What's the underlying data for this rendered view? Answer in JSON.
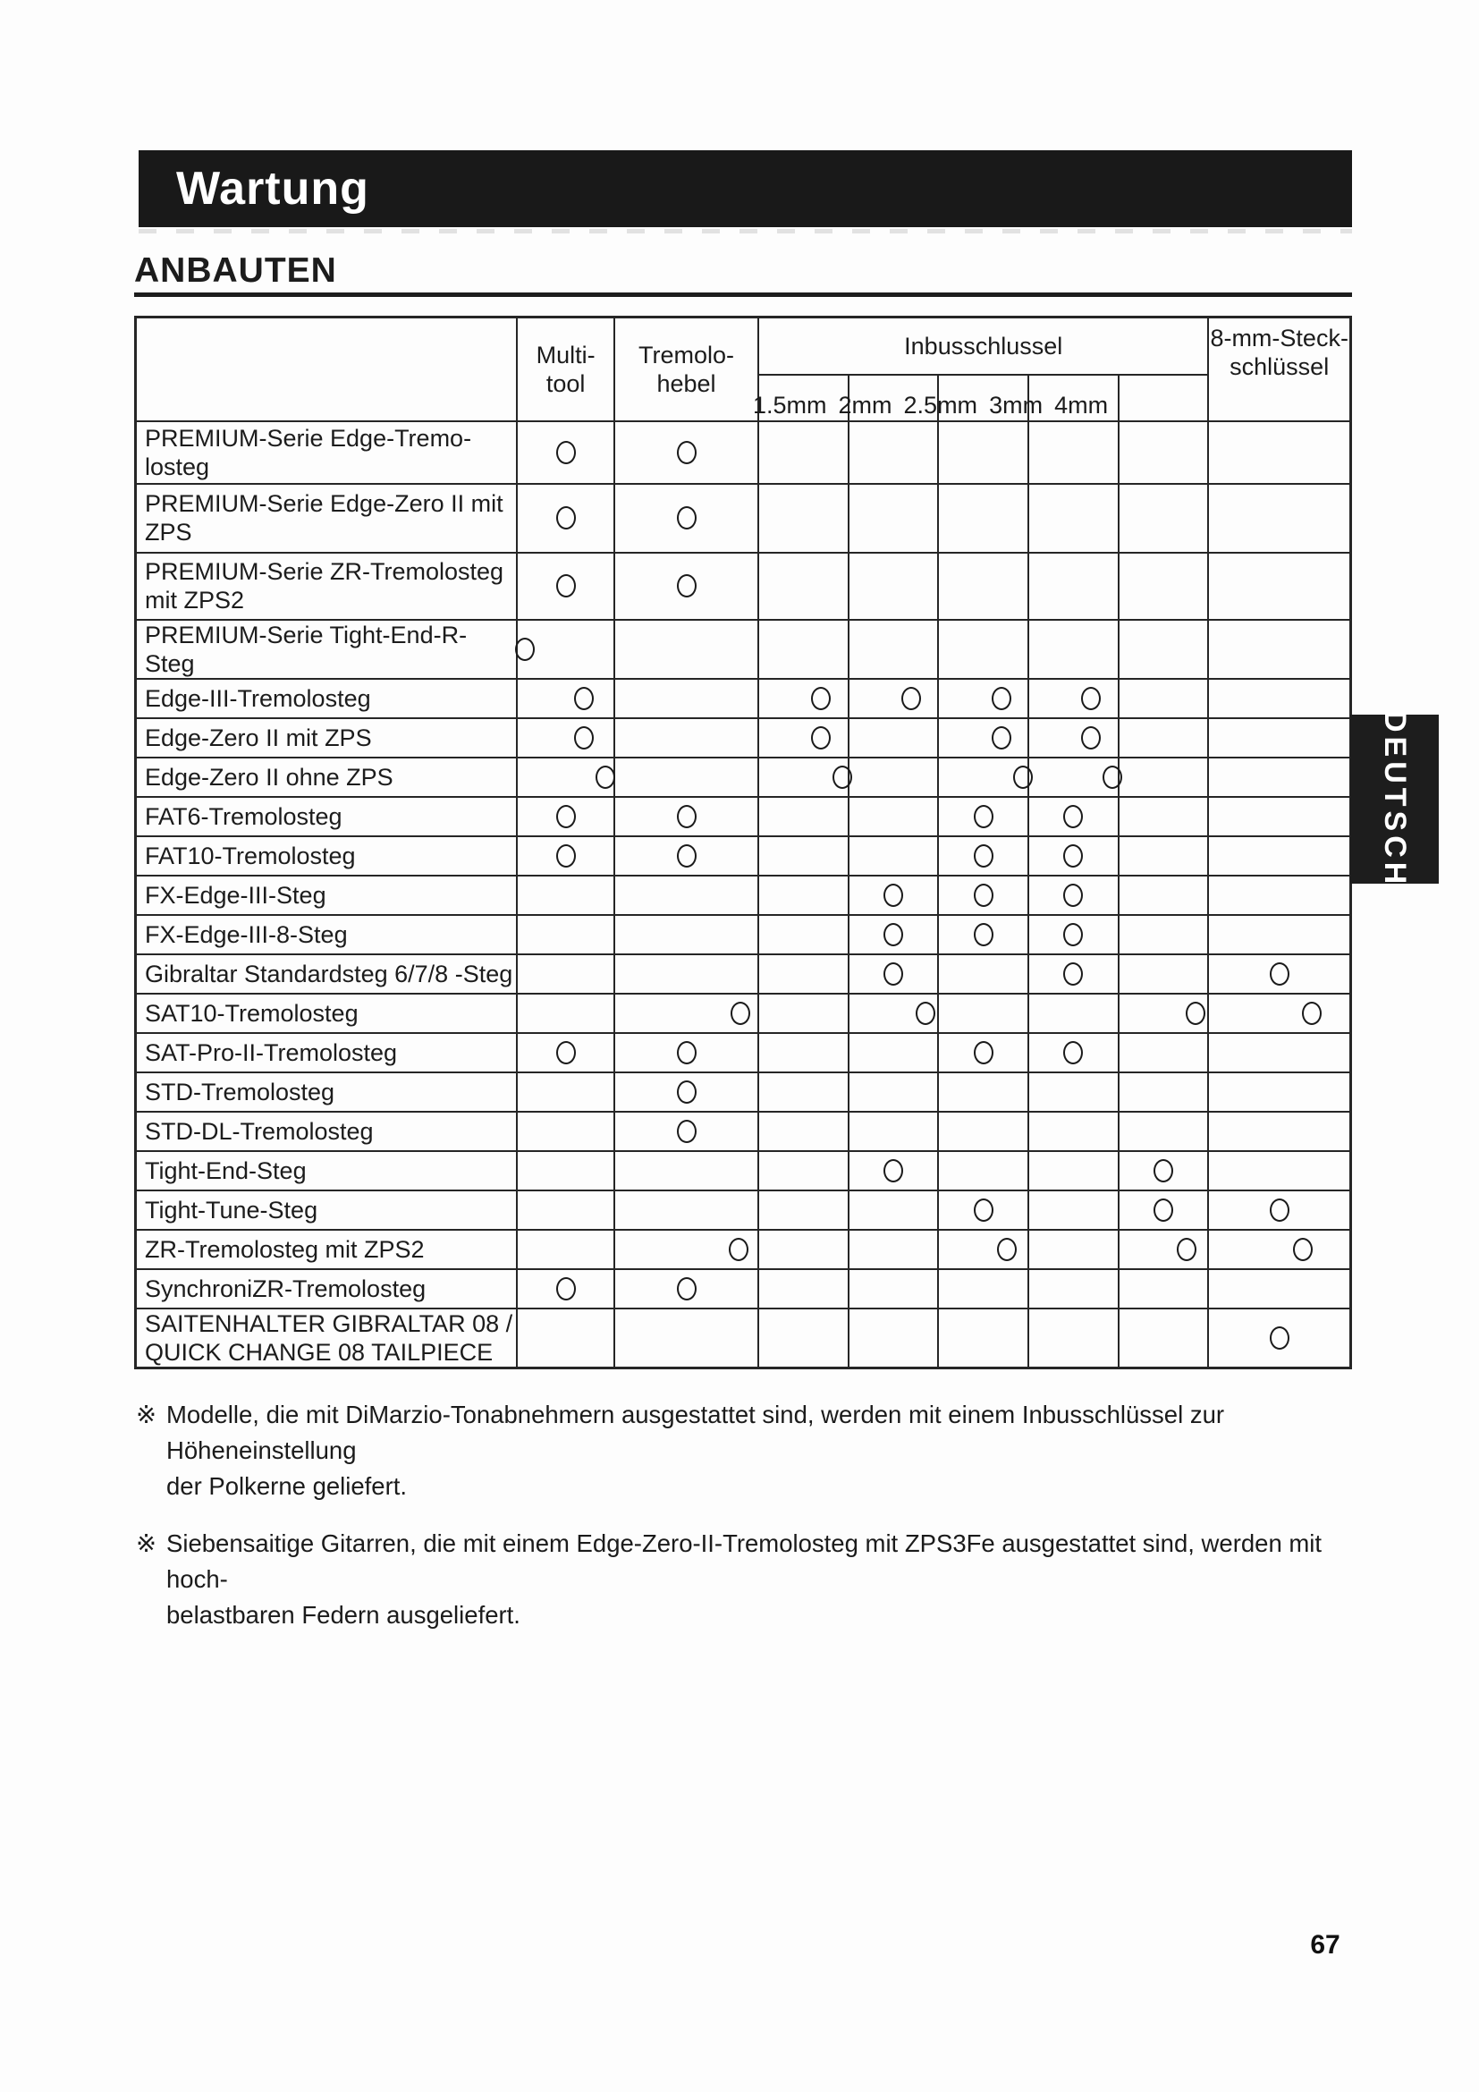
{
  "header": {
    "title": "Wartung",
    "section": "ANBAUTEN"
  },
  "table": {
    "col_headers": {
      "multi_tool_line1": "Multi-",
      "multi_tool_line2": "tool",
      "tremolo_arm_line1": "Tremolo-",
      "tremolo_arm_line2": "hebel",
      "allen_wrench_group": "Inbusschlussel",
      "allen_sizes": [
        "1.5mm",
        "2mm",
        "2.5mm",
        "3mm",
        "4mm"
      ],
      "socket_wrench_line1": "8-mm-Steck-",
      "socket_wrench_line2": "schlüssel"
    },
    "columns_order": [
      "multi_tool",
      "tremolo_arm",
      "allen_1_5mm",
      "allen_2mm",
      "allen_2_5mm",
      "allen_3mm",
      "allen_4mm",
      "socket_8mm"
    ],
    "circle_mark_meaning": "tool supplied with this bridge",
    "rows": [
      {
        "label": "PREMIUM-Serie Edge-Tremo-\nlosteg",
        "cells": [
          1,
          1,
          0,
          0,
          0,
          0,
          0,
          0
        ]
      },
      {
        "label": "PREMIUM-Serie Edge-Zero II mit\nZPS",
        "cells": [
          1,
          1,
          0,
          0,
          0,
          0,
          0,
          0
        ]
      },
      {
        "label": "PREMIUM-Serie ZR-Tremolosteg\nmit ZPS2",
        "cells": [
          1,
          1,
          0,
          0,
          0,
          0,
          0,
          0
        ]
      },
      {
        "label": "PREMIUM-Serie Tight-End-R-Steg",
        "cells": [
          1,
          0,
          0,
          0,
          0,
          0,
          0,
          0
        ]
      },
      {
        "label": "Edge-III-Tremolosteg",
        "cells": [
          1,
          0,
          1,
          1,
          1,
          1,
          0,
          0
        ]
      },
      {
        "label": "Edge-Zero II mit ZPS",
        "cells": [
          1,
          0,
          1,
          0,
          1,
          1,
          0,
          0
        ]
      },
      {
        "label": "Edge-Zero II ohne ZPS",
        "cells": [
          1,
          0,
          1,
          0,
          1,
          1,
          0,
          0
        ]
      },
      {
        "label": "FAT6-Tremolosteg",
        "cells": [
          1,
          1,
          0,
          0,
          1,
          1,
          0,
          0
        ]
      },
      {
        "label": "FAT10-Tremolosteg",
        "cells": [
          1,
          1,
          0,
          0,
          1,
          1,
          0,
          0
        ]
      },
      {
        "label": "FX-Edge-III-Steg",
        "cells": [
          0,
          0,
          0,
          1,
          1,
          1,
          0,
          0
        ]
      },
      {
        "label": "FX-Edge-III-8-Steg",
        "cells": [
          0,
          0,
          0,
          1,
          1,
          1,
          0,
          0
        ]
      },
      {
        "label": "Gibraltar Standardsteg 6/7/8 -Steg",
        "cells": [
          0,
          0,
          0,
          1,
          0,
          1,
          0,
          1
        ]
      },
      {
        "label": "SAT10-Tremolosteg",
        "cells": [
          0,
          1,
          0,
          1,
          0,
          0,
          1,
          1
        ]
      },
      {
        "label": "SAT-Pro-II-Tremolosteg",
        "cells": [
          1,
          1,
          0,
          0,
          1,
          1,
          0,
          0
        ]
      },
      {
        "label": "STD-Tremolosteg",
        "cells": [
          0,
          1,
          0,
          0,
          0,
          0,
          0,
          0
        ]
      },
      {
        "label": "STD-DL-Tremolosteg",
        "cells": [
          0,
          1,
          0,
          0,
          0,
          0,
          0,
          0
        ]
      },
      {
        "label": "Tight-End-Steg",
        "cells": [
          0,
          0,
          0,
          1,
          0,
          0,
          1,
          0
        ]
      },
      {
        "label": "Tight-Tune-Steg",
        "cells": [
          0,
          0,
          0,
          0,
          1,
          0,
          1,
          1
        ]
      },
      {
        "label": "ZR-Tremolosteg mit ZPS2",
        "cells": [
          0,
          1,
          0,
          0,
          1,
          0,
          1,
          1
        ]
      },
      {
        "label": "SynchroniZR-Tremolosteg",
        "cells": [
          1,
          1,
          0,
          0,
          0,
          0,
          0,
          0
        ]
      },
      {
        "label": "SAITENHALTER GIBRALTAR 08 /\nQUICK CHANGE 08 TAILPIECE",
        "cells": [
          0,
          0,
          0,
          0,
          0,
          0,
          0,
          1
        ]
      }
    ]
  },
  "footnotes": [
    {
      "marker": "※",
      "line1": "Modelle, die mit DiMarzio-Tonabnehmern ausgestattet sind, werden mit einem Inbusschlüssel zur Höheneinstellung",
      "line2": "der Polkerne geliefert."
    },
    {
      "marker": "※",
      "line1": "Siebensaitige Gitarren, die mit einem Edge-Zero-II-Tremolosteg mit ZPS3Fe ausgestattet sind, werden mit hoch-",
      "line2": "belastbaren Federn ausgeliefert."
    }
  ],
  "page": {
    "language_tab": "DEUTSCH",
    "page_number": "67"
  },
  "colors": {
    "ink": "#1c1c1c",
    "title_bar_bg": "#191919",
    "page_bg": "#fdfdfd"
  }
}
